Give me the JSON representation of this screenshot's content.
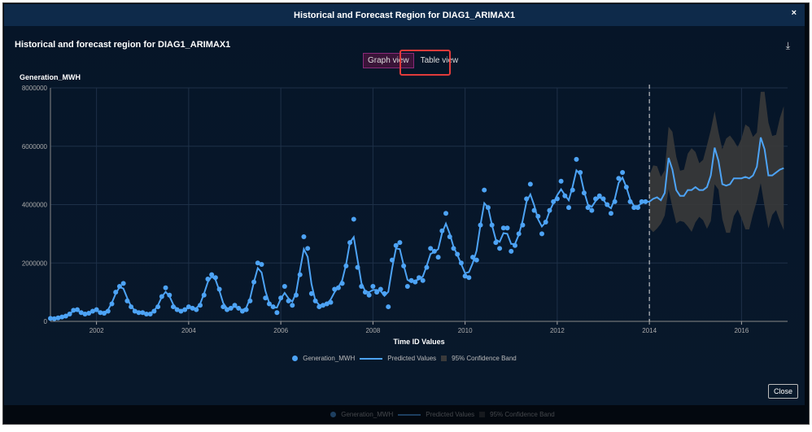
{
  "dialog": {
    "header_title": "Historical and Forecast Region for DIAG1_ARIMAX1",
    "close_glyph": "×",
    "title": "Historical and forecast region for DIAG1_ARIMAX1",
    "download_icon": "download-icon",
    "close_label": "Close"
  },
  "views": {
    "graph": "Graph view",
    "table": "Table view"
  },
  "colors": {
    "accent": "#4da3f5",
    "band": "#3a3a3a",
    "header": "#0e2a4a",
    "highlight": "#e23b3b"
  },
  "chart_data": {
    "type": "line",
    "ylabel": "Generation_MWH",
    "xlabel": "Time ID Values",
    "xlim": [
      2001,
      2017
    ],
    "ylim": [
      0,
      8000000
    ],
    "xticks": [
      2002,
      2004,
      2006,
      2008,
      2010,
      2012,
      2014,
      2016
    ],
    "yticks": [
      0,
      2000000,
      4000000,
      6000000,
      8000000
    ],
    "ytick_labels": [
      "0",
      "2000000",
      "4000000",
      "6000000",
      "8000000"
    ],
    "forecast_start": 2014,
    "legend": {
      "position": "bottom",
      "items": [
        "Generation_MWH",
        "Predicted Values",
        "95% Confidence Band"
      ]
    },
    "actual_start_year": 2001,
    "actual_monthly": [
      100000,
      90000,
      120000,
      150000,
      180000,
      250000,
      380000,
      400000,
      300000,
      250000,
      280000,
      350000,
      400000,
      300000,
      280000,
      350000,
      600000,
      1000000,
      1200000,
      1300000,
      700000,
      500000,
      350000,
      300000,
      300000,
      250000,
      250000,
      350000,
      500000,
      850000,
      1150000,
      900000,
      500000,
      400000,
      350000,
      400000,
      500000,
      450000,
      400000,
      550000,
      900000,
      1450000,
      1600000,
      1500000,
      1100000,
      500000,
      400000,
      450000,
      550000,
      450000,
      350000,
      400000,
      700000,
      1350000,
      2000000,
      1950000,
      800000,
      600000,
      500000,
      300000,
      800000,
      1200000,
      700000,
      550000,
      900000,
      1600000,
      2900000,
      2500000,
      950000,
      700000,
      500000,
      550000,
      600000,
      650000,
      1100000,
      1150000,
      1300000,
      1900000,
      2700000,
      3500000,
      1850000,
      1200000,
      1000000,
      900000,
      1200000,
      1000000,
      1100000,
      950000,
      500000,
      2100000,
      2600000,
      2700000,
      1900000,
      1200000,
      1400000,
      1350000,
      1500000,
      1400000,
      1850000,
      2500000,
      2400000,
      2200000,
      3100000,
      3700000,
      2900000,
      2500000,
      2300000,
      2000000,
      1550000,
      1500000,
      2200000,
      2100000,
      3300000,
      4500000,
      3900000,
      3300000,
      2700000,
      2500000,
      3200000,
      3200000,
      2400000,
      2600000,
      3000000,
      3300000,
      4200000,
      4700000,
      3800000,
      3600000,
      3000000,
      3400000,
      3800000,
      4100000,
      4200000,
      4800000,
      4300000,
      3900000,
      4500000,
      5550000,
      5100000,
      4400000,
      3900000,
      3800000,
      4200000,
      4300000,
      4200000,
      4000000,
      3700000,
      4100000,
      4900000,
      5100000,
      4600000,
      4100000,
      3900000,
      3900000,
      4100000,
      4100000
    ],
    "forecast_monthly": [
      4100000,
      4200000,
      4250000,
      4150000,
      4400000,
      5600000,
      5200000,
      4500000,
      4300000,
      4300000,
      4500000,
      4500000,
      4600000,
      4500000,
      4500000,
      4600000,
      5000000,
      5950000,
      5500000,
      4700000,
      4650000,
      4700000,
      4900000,
      4900000,
      4900000,
      4950000,
      4900000,
      5000000,
      5300000,
      6300000,
      5900000,
      5000000,
      5000000,
      5100000,
      5200000,
      5250000
    ],
    "band_halfwidth_start": 900000,
    "band_halfwidth_end": 1700000
  }
}
